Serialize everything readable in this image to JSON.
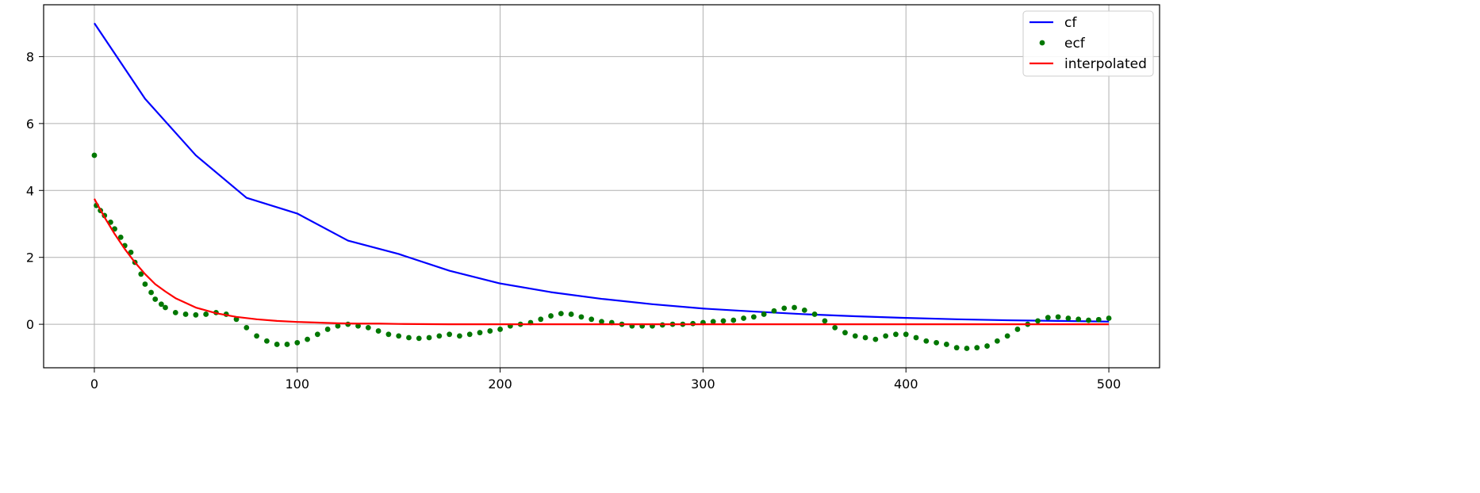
{
  "chart_data": {
    "type": "line",
    "title": "",
    "xlabel": "",
    "ylabel": "",
    "xlim": [
      -25,
      525
    ],
    "ylim": [
      -1.3,
      9.55
    ],
    "xticks": [
      0,
      100,
      200,
      300,
      400,
      500
    ],
    "yticks": [
      0,
      2,
      4,
      6,
      8
    ],
    "xtick_labels": [
      "0",
      "100",
      "200",
      "300",
      "400",
      "500"
    ],
    "ytick_labels": [
      "0",
      "2",
      "4",
      "6",
      "8"
    ],
    "grid": true,
    "legend_position": "top-right",
    "series": [
      {
        "name": "cf",
        "kind": "line",
        "color": "#0000ff",
        "x": [
          0,
          25,
          50,
          75,
          100,
          125,
          150,
          175,
          200,
          225,
          250,
          275,
          300,
          325,
          350,
          375,
          400,
          425,
          450,
          475,
          500
        ],
        "values": [
          9.0,
          6.74,
          5.05,
          3.78,
          3.31,
          2.5,
          2.1,
          1.6,
          1.22,
          0.96,
          0.76,
          0.6,
          0.47,
          0.38,
          0.3,
          0.24,
          0.19,
          0.15,
          0.12,
          0.1,
          0.08
        ]
      },
      {
        "name": "ecf",
        "kind": "scatter",
        "color": "#007700",
        "x": [
          0,
          1,
          3,
          5,
          8,
          10,
          13,
          15,
          18,
          20,
          23,
          25,
          28,
          30,
          33,
          35,
          40,
          45,
          50,
          55,
          60,
          65,
          70,
          75,
          80,
          85,
          90,
          95,
          100,
          105,
          110,
          115,
          120,
          125,
          130,
          135,
          140,
          145,
          150,
          155,
          160,
          165,
          170,
          175,
          180,
          185,
          190,
          195,
          200,
          205,
          210,
          215,
          220,
          225,
          230,
          235,
          240,
          245,
          250,
          255,
          260,
          265,
          270,
          275,
          280,
          285,
          290,
          295,
          300,
          305,
          310,
          315,
          320,
          325,
          330,
          335,
          340,
          345,
          350,
          355,
          360,
          365,
          370,
          375,
          380,
          385,
          390,
          395,
          400,
          405,
          410,
          415,
          420,
          425,
          430,
          435,
          440,
          445,
          450,
          455,
          460,
          465,
          470,
          475,
          480,
          485,
          490,
          495,
          500
        ],
        "values": [
          5.05,
          3.55,
          3.4,
          3.25,
          3.05,
          2.85,
          2.6,
          2.35,
          2.15,
          1.85,
          1.5,
          1.2,
          0.95,
          0.75,
          0.6,
          0.5,
          0.35,
          0.3,
          0.28,
          0.3,
          0.35,
          0.3,
          0.15,
          -0.1,
          -0.35,
          -0.5,
          -0.6,
          -0.6,
          -0.55,
          -0.45,
          -0.3,
          -0.15,
          -0.05,
          0.0,
          -0.05,
          -0.1,
          -0.2,
          -0.3,
          -0.35,
          -0.4,
          -0.42,
          -0.4,
          -0.35,
          -0.3,
          -0.35,
          -0.3,
          -0.25,
          -0.2,
          -0.15,
          -0.05,
          0.0,
          0.05,
          0.15,
          0.25,
          0.32,
          0.3,
          0.22,
          0.15,
          0.08,
          0.05,
          0.0,
          -0.05,
          -0.05,
          -0.05,
          -0.02,
          0.0,
          0.0,
          0.02,
          0.05,
          0.08,
          0.1,
          0.12,
          0.18,
          0.22,
          0.3,
          0.4,
          0.48,
          0.5,
          0.42,
          0.3,
          0.1,
          -0.1,
          -0.25,
          -0.35,
          -0.4,
          -0.45,
          -0.35,
          -0.3,
          -0.3,
          -0.4,
          -0.5,
          -0.55,
          -0.6,
          -0.7,
          -0.72,
          -0.7,
          -0.65,
          -0.5,
          -0.35,
          -0.15,
          0.0,
          0.1,
          0.2,
          0.22,
          0.18,
          0.15,
          0.12,
          0.14,
          0.18
        ]
      },
      {
        "name": "interpolated",
        "kind": "line",
        "color": "#ff0000",
        "x": [
          0,
          5,
          10,
          15,
          20,
          25,
          30,
          35,
          40,
          50,
          60,
          70,
          80,
          90,
          100,
          110,
          120,
          130,
          140,
          150,
          175,
          200,
          250,
          300,
          350,
          400,
          450,
          500
        ],
        "values": [
          3.75,
          3.2,
          2.7,
          2.25,
          1.85,
          1.5,
          1.2,
          0.98,
          0.78,
          0.5,
          0.33,
          0.22,
          0.15,
          0.1,
          0.07,
          0.05,
          0.03,
          0.02,
          0.02,
          0.01,
          0.0,
          0.0,
          0.0,
          0.0,
          0.0,
          0.0,
          0.0,
          0.0
        ]
      }
    ]
  }
}
